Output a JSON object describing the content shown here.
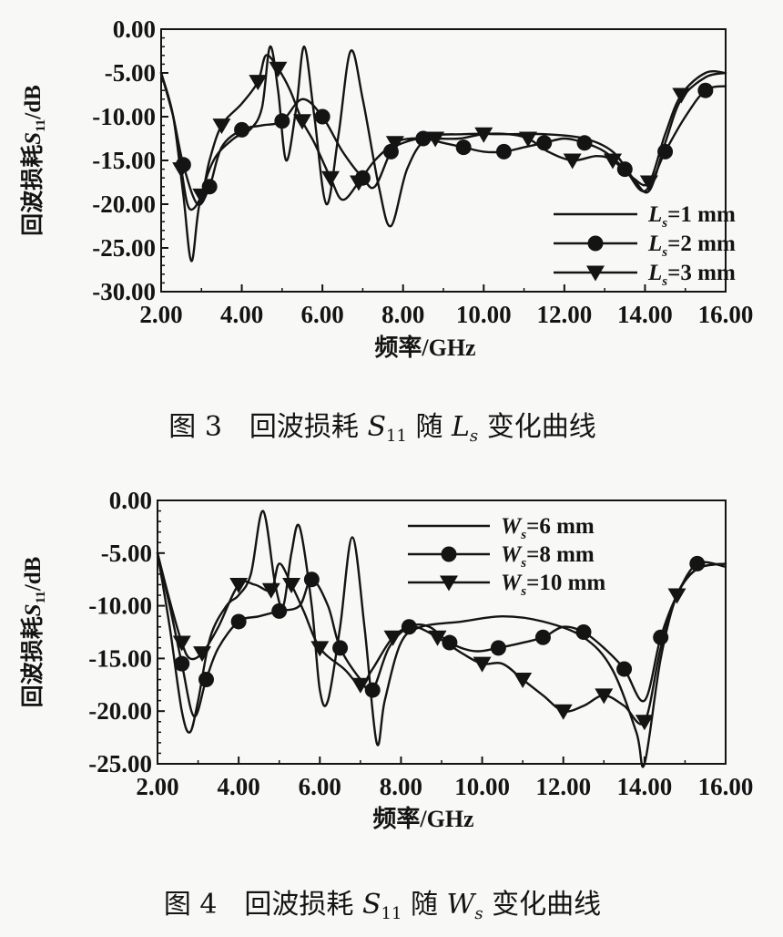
{
  "chart_data": [
    {
      "type": "line",
      "caption": "图 3　回波损耗 S11 随 Ls 变化曲线",
      "xlabel": "频率/GHz",
      "ylabel": "回波损耗S11/dB",
      "xlim": [
        2,
        16
      ],
      "ylim": [
        -30,
        0
      ],
      "x_ticks": [
        "2.00",
        "4.00",
        "6.00",
        "8.00",
        "10.00",
        "12.00",
        "14.00",
        "16.00"
      ],
      "y_ticks": [
        "0.00",
        "-5.00",
        "-10.00",
        "-15.00",
        "-20.00",
        "-25.00",
        "-30.00"
      ],
      "legend_position": "bottom-right",
      "series": [
        {
          "name": "Ls=1 mm",
          "marker": "none",
          "points": [
            [
              2.0,
              -5.0
            ],
            [
              2.3,
              -10.0
            ],
            [
              2.55,
              -19.0
            ],
            [
              2.75,
              -26.5
            ],
            [
              2.95,
              -20.0
            ],
            [
              3.3,
              -15.0
            ],
            [
              3.8,
              -12.5
            ],
            [
              4.2,
              -11.5
            ],
            [
              4.5,
              -9.0
            ],
            [
              4.7,
              -2.0
            ],
            [
              4.9,
              -7.0
            ],
            [
              5.1,
              -15.0
            ],
            [
              5.35,
              -9.0
            ],
            [
              5.55,
              -2.0
            ],
            [
              5.8,
              -10.0
            ],
            [
              6.1,
              -20.0
            ],
            [
              6.4,
              -12.0
            ],
            [
              6.7,
              -2.5
            ],
            [
              7.0,
              -8.0
            ],
            [
              7.4,
              -18.0
            ],
            [
              7.7,
              -22.5
            ],
            [
              8.1,
              -16.0
            ],
            [
              8.6,
              -12.5
            ],
            [
              9.5,
              -12.0
            ],
            [
              10.5,
              -12.0
            ],
            [
              11.5,
              -12.0
            ],
            [
              12.5,
              -12.5
            ],
            [
              13.2,
              -14.0
            ],
            [
              13.7,
              -17.0
            ],
            [
              14.1,
              -18.5
            ],
            [
              14.5,
              -13.0
            ],
            [
              14.9,
              -8.0
            ],
            [
              15.5,
              -5.5
            ],
            [
              16.0,
              -5.0
            ]
          ]
        },
        {
          "name": "Ls=2 mm",
          "marker": "circle",
          "points": [
            [
              2.0,
              -5.0
            ],
            [
              2.3,
              -10.0
            ],
            [
              2.55,
              -15.5
            ],
            [
              2.9,
              -20.0
            ],
            [
              3.2,
              -18.0
            ],
            [
              3.5,
              -13.5
            ],
            [
              4.0,
              -11.5
            ],
            [
              4.5,
              -11.0
            ],
            [
              5.0,
              -10.5
            ],
            [
              5.5,
              -8.0
            ],
            [
              6.0,
              -10.0
            ],
            [
              6.5,
              -14.0
            ],
            [
              7.0,
              -17.0
            ],
            [
              7.3,
              -18.0
            ],
            [
              7.7,
              -14.0
            ],
            [
              8.0,
              -13.0
            ],
            [
              8.5,
              -12.5
            ],
            [
              9.0,
              -13.0
            ],
            [
              9.5,
              -13.5
            ],
            [
              10.0,
              -14.0
            ],
            [
              10.5,
              -14.0
            ],
            [
              11.0,
              -13.5
            ],
            [
              11.5,
              -13.0
            ],
            [
              12.0,
              -12.5
            ],
            [
              12.5,
              -13.0
            ],
            [
              13.0,
              -14.0
            ],
            [
              13.5,
              -16.0
            ],
            [
              14.0,
              -18.5
            ],
            [
              14.5,
              -14.0
            ],
            [
              15.0,
              -10.0
            ],
            [
              15.5,
              -7.0
            ],
            [
              16.0,
              -6.5
            ]
          ]
        },
        {
          "name": "Ls=3 mm",
          "marker": "triangle-down",
          "points": [
            [
              2.0,
              -5.0
            ],
            [
              2.3,
              -10.0
            ],
            [
              2.5,
              -16.0
            ],
            [
              2.7,
              -20.5
            ],
            [
              3.0,
              -19.0
            ],
            [
              3.2,
              -15.0
            ],
            [
              3.5,
              -11.0
            ],
            [
              4.0,
              -8.5
            ],
            [
              4.4,
              -6.0
            ],
            [
              4.6,
              -3.0
            ],
            [
              4.9,
              -4.5
            ],
            [
              5.2,
              -7.0
            ],
            [
              5.5,
              -10.5
            ],
            [
              5.8,
              -13.0
            ],
            [
              6.2,
              -17.0
            ],
            [
              6.5,
              -19.5
            ],
            [
              6.9,
              -17.5
            ],
            [
              7.3,
              -15.0
            ],
            [
              7.8,
              -13.0
            ],
            [
              8.2,
              -12.5
            ],
            [
              8.8,
              -12.5
            ],
            [
              9.4,
              -12.5
            ],
            [
              10.0,
              -12.0
            ],
            [
              10.6,
              -12.0
            ],
            [
              11.1,
              -12.5
            ],
            [
              11.6,
              -14.0
            ],
            [
              12.2,
              -15.0
            ],
            [
              12.8,
              -14.5
            ],
            [
              13.2,
              -15.0
            ],
            [
              13.7,
              -17.0
            ],
            [
              14.1,
              -17.5
            ],
            [
              14.5,
              -12.0
            ],
            [
              14.9,
              -7.5
            ],
            [
              15.5,
              -5.0
            ],
            [
              16.0,
              -5.0
            ]
          ]
        }
      ]
    },
    {
      "type": "line",
      "caption": "图 4　回波损耗 S11 随 Ws 变化曲线",
      "xlabel": "频率/GHz",
      "ylabel": "回波损耗S11/dB",
      "xlim": [
        2,
        16
      ],
      "ylim": [
        -25,
        0
      ],
      "x_ticks": [
        "2.00",
        "4.00",
        "6.00",
        "8.00",
        "10.00",
        "12.00",
        "14.00",
        "16.00"
      ],
      "y_ticks": [
        "0.00",
        "-5.00",
        "-10.00",
        "-15.00",
        "-20.00",
        "-25.00"
      ],
      "legend_position": "top-right",
      "series": [
        {
          "name": "Ws=6 mm",
          "marker": "none",
          "points": [
            [
              2.0,
              -5.0
            ],
            [
              2.3,
              -12.0
            ],
            [
              2.6,
              -20.0
            ],
            [
              2.8,
              -22.0
            ],
            [
              3.0,
              -19.0
            ],
            [
              3.3,
              -13.0
            ],
            [
              3.7,
              -10.0
            ],
            [
              4.0,
              -9.0
            ],
            [
              4.3,
              -7.0
            ],
            [
              4.6,
              -1.0
            ],
            [
              4.9,
              -8.0
            ],
            [
              5.1,
              -10.0
            ],
            [
              5.3,
              -5.0
            ],
            [
              5.5,
              -2.5
            ],
            [
              5.8,
              -10.0
            ],
            [
              6.0,
              -18.0
            ],
            [
              6.2,
              -19.0
            ],
            [
              6.5,
              -12.0
            ],
            [
              6.8,
              -3.5
            ],
            [
              7.1,
              -12.0
            ],
            [
              7.4,
              -23.0
            ],
            [
              7.6,
              -19.0
            ],
            [
              8.0,
              -13.5
            ],
            [
              8.5,
              -12.0
            ],
            [
              9.5,
              -11.5
            ],
            [
              10.5,
              -11.0
            ],
            [
              11.5,
              -11.5
            ],
            [
              12.5,
              -13.0
            ],
            [
              13.2,
              -16.0
            ],
            [
              13.8,
              -22.0
            ],
            [
              14.0,
              -25.0
            ],
            [
              14.4,
              -15.0
            ],
            [
              14.8,
              -9.0
            ],
            [
              15.3,
              -6.5
            ],
            [
              16.0,
              -6.0
            ]
          ]
        },
        {
          "name": "Ws=8 mm",
          "marker": "circle",
          "points": [
            [
              2.0,
              -5.0
            ],
            [
              2.3,
              -10.0
            ],
            [
              2.6,
              -15.5
            ],
            [
              2.9,
              -20.5
            ],
            [
              3.2,
              -17.0
            ],
            [
              3.5,
              -14.0
            ],
            [
              4.0,
              -11.5
            ],
            [
              4.5,
              -11.0
            ],
            [
              5.0,
              -10.5
            ],
            [
              5.5,
              -10.0
            ],
            [
              5.8,
              -7.5
            ],
            [
              6.2,
              -10.0
            ],
            [
              6.5,
              -14.0
            ],
            [
              7.0,
              -17.0
            ],
            [
              7.3,
              -18.0
            ],
            [
              7.7,
              -14.0
            ],
            [
              8.2,
              -12.0
            ],
            [
              8.7,
              -12.0
            ],
            [
              9.2,
              -13.5
            ],
            [
              9.8,
              -14.3
            ],
            [
              10.4,
              -14.0
            ],
            [
              11.0,
              -13.5
            ],
            [
              11.5,
              -13.0
            ],
            [
              12.0,
              -12.0
            ],
            [
              12.5,
              -12.5
            ],
            [
              13.0,
              -14.0
            ],
            [
              13.5,
              -16.0
            ],
            [
              14.0,
              -19.0
            ],
            [
              14.4,
              -13.0
            ],
            [
              14.8,
              -9.0
            ],
            [
              15.3,
              -6.0
            ],
            [
              16.0,
              -6.3
            ]
          ]
        },
        {
          "name": "Ws=10 mm",
          "marker": "triangle-down",
          "points": [
            [
              2.0,
              -5.0
            ],
            [
              2.3,
              -9.5
            ],
            [
              2.6,
              -13.5
            ],
            [
              2.8,
              -15.0
            ],
            [
              3.1,
              -14.5
            ],
            [
              3.5,
              -12.0
            ],
            [
              4.0,
              -8.0
            ],
            [
              4.4,
              -8.0
            ],
            [
              4.8,
              -8.5
            ],
            [
              5.0,
              -6.0
            ],
            [
              5.3,
              -8.0
            ],
            [
              5.6,
              -10.5
            ],
            [
              6.0,
              -14.0
            ],
            [
              6.6,
              -16.0
            ],
            [
              7.0,
              -17.5
            ],
            [
              7.3,
              -16.0
            ],
            [
              7.8,
              -13.0
            ],
            [
              8.3,
              -12.0
            ],
            [
              8.9,
              -13.0
            ],
            [
              9.5,
              -14.5
            ],
            [
              10.0,
              -15.5
            ],
            [
              10.5,
              -15.5
            ],
            [
              11.0,
              -17.0
            ],
            [
              11.5,
              -18.5
            ],
            [
              12.0,
              -20.0
            ],
            [
              12.5,
              -19.5
            ],
            [
              13.0,
              -18.5
            ],
            [
              13.5,
              -19.5
            ],
            [
              14.0,
              -21.0
            ],
            [
              14.4,
              -14.0
            ],
            [
              14.8,
              -9.0
            ],
            [
              15.3,
              -6.5
            ],
            [
              16.0,
              -6.0
            ]
          ]
        }
      ]
    }
  ],
  "legends": [
    [
      {
        "label": "L",
        "sub": "s",
        "rest": "=1 mm"
      },
      {
        "label": "L",
        "sub": "s",
        "rest": "=2 mm"
      },
      {
        "label": "L",
        "sub": "s",
        "rest": "=3 mm"
      }
    ],
    [
      {
        "label": "W",
        "sub": "s",
        "rest": "=6 mm"
      },
      {
        "label": "W",
        "sub": "s",
        "rest": "=8 mm"
      },
      {
        "label": "W",
        "sub": "s",
        "rest": "=10 mm"
      }
    ]
  ],
  "captions": [
    {
      "prefix": "图 3　回波损耗 ",
      "s": "S",
      "s_sub": "11",
      "mid": " 随 ",
      "v": "L",
      "v_sub": "s",
      "suffix": " 变化曲线"
    },
    {
      "prefix": "图 4　回波损耗 ",
      "s": "S",
      "s_sub": "11",
      "mid": " 随 ",
      "v": "W",
      "v_sub": "s",
      "suffix": " 变化曲线"
    }
  ],
  "axis_text": {
    "ylabel_main": "回波损耗",
    "ylabel_sym": "S",
    "ylabel_sub": "11",
    "ylabel_unit": "/dB",
    "xlabel": "频率/GHz"
  }
}
